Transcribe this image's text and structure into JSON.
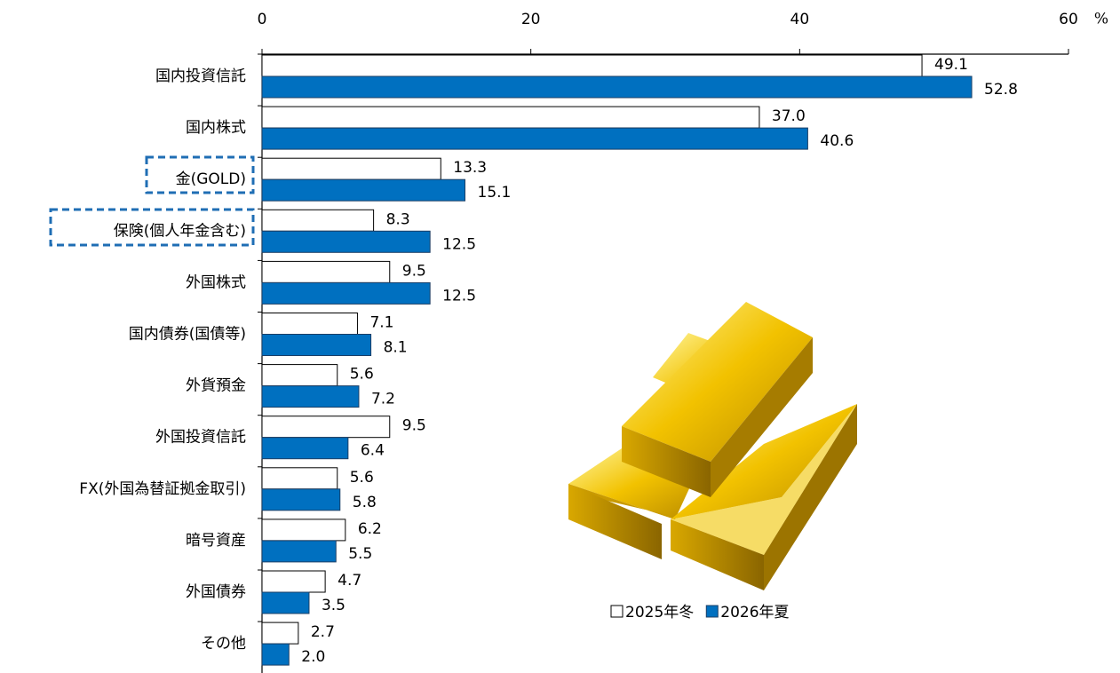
{
  "chart_data": {
    "type": "bar",
    "orientation": "horizontal",
    "xlabel": "%",
    "categories": [
      "国内投資信託",
      "国内株式",
      "金(GOLD)",
      "保険(個人年金含む)",
      "外国株式",
      "国内債券(国債等)",
      "外貨預金",
      "外国投資信託",
      "FX(外国為替証拠金取引)",
      "暗号資産",
      "外国債券",
      "その他"
    ],
    "series": [
      {
        "name": "2025年冬",
        "color": "#ffffff",
        "values": [
          49.1,
          37,
          13.3,
          8.3,
          9.5,
          7.1,
          5.6,
          9.5,
          5.6,
          6.2,
          4.7,
          2.7
        ],
        "value_labels": [
          "49.1",
          "37.0",
          "13.3",
          "8.3",
          "9.5",
          "7.1",
          "5.6",
          "9.5",
          "5.6",
          "6.2",
          "4.7",
          "2.7"
        ]
      },
      {
        "name": "2026年夏",
        "color": "#0070c0",
        "values": [
          52.8,
          40.6,
          15.1,
          12.5,
          12.5,
          8.1,
          7.2,
          6.4,
          5.8,
          5.5,
          3.5,
          2
        ],
        "value_labels": [
          "52.8",
          "40.6",
          "15.1",
          "12.5",
          "12.5",
          "8.1",
          "7.2",
          "6.4",
          "5.8",
          "5.5",
          "3.5",
          "2.0"
        ]
      }
    ],
    "xlim": [
      0,
      60
    ],
    "xticks": [
      0,
      20,
      40,
      60
    ],
    "legend": "lower-right"
  }
}
